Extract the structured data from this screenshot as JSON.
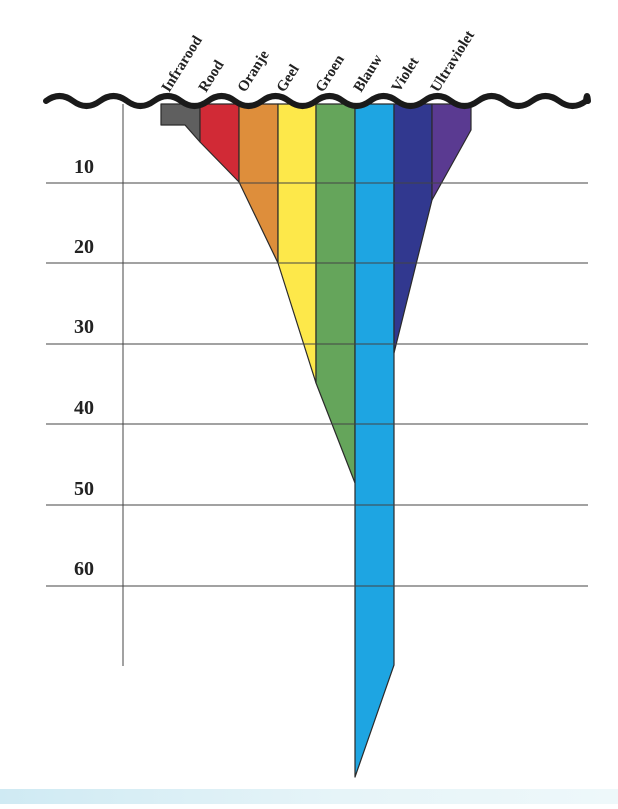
{
  "diagram": {
    "depth_labels": [
      "10",
      "20",
      "30",
      "40",
      "50",
      "60"
    ],
    "color_labels": [
      "Infrarood",
      "Rood",
      "Oranje",
      "Geel",
      "Groen",
      "Blauw",
      "Violet",
      "Ultraviolet"
    ],
    "band_colors": [
      "#5f5f5f",
      "#d12a36",
      "#de8e3b",
      "#fde84a",
      "#65a55b",
      "#1ea5e2",
      "#31388f",
      "#5a3a91"
    ],
    "water_line_color": "#1a1a1a",
    "grid_line_color": "#444444"
  }
}
